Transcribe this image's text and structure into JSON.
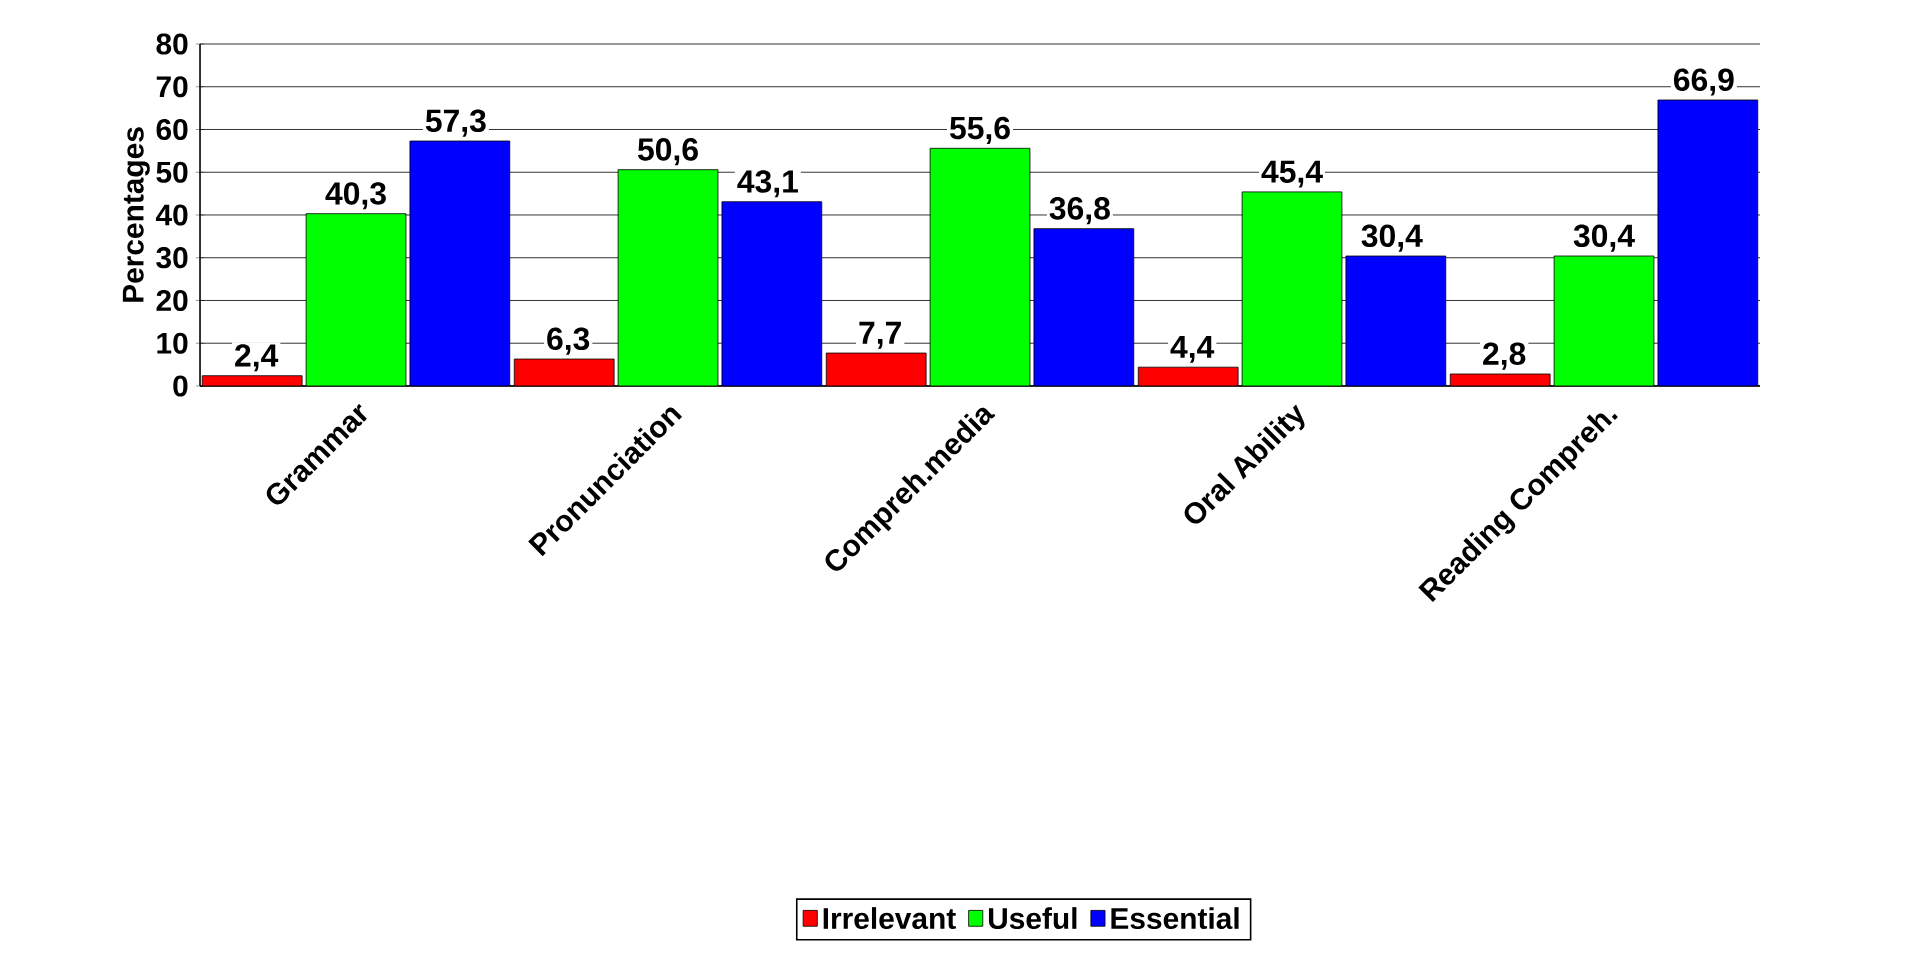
{
  "chart_data": {
    "type": "bar",
    "ylabel": "Percentages",
    "categories": [
      "Grammar",
      "Pronunciation",
      "Compreh.media",
      "Oral Ability",
      "Reading Compreh."
    ],
    "series": [
      {
        "name": "Irrelevant",
        "color": "#ff0000",
        "values": [
          2.4,
          6.3,
          7.7,
          4.4,
          2.8
        ],
        "value_labels": [
          "2,4",
          "6,3",
          "7,7",
          "4,4",
          "2,8"
        ]
      },
      {
        "name": "Useful",
        "color": "#00ff00",
        "values": [
          40.3,
          50.6,
          55.6,
          45.4,
          30.4
        ],
        "value_labels": [
          "40,3",
          "50,6",
          "55,6",
          "45,4",
          "30,4"
        ]
      },
      {
        "name": "Essential",
        "color": "#0000ff",
        "values": [
          57.3,
          43.1,
          36.8,
          30.4,
          66.9
        ],
        "value_labels": [
          "57,3",
          "43,1",
          "36,8",
          "30,4",
          "66,9"
        ]
      }
    ],
    "ylim": [
      0,
      80
    ],
    "yticks": [
      0,
      10,
      20,
      30,
      40,
      50,
      60,
      70,
      80
    ],
    "grid": "y",
    "legend": "bottom"
  }
}
